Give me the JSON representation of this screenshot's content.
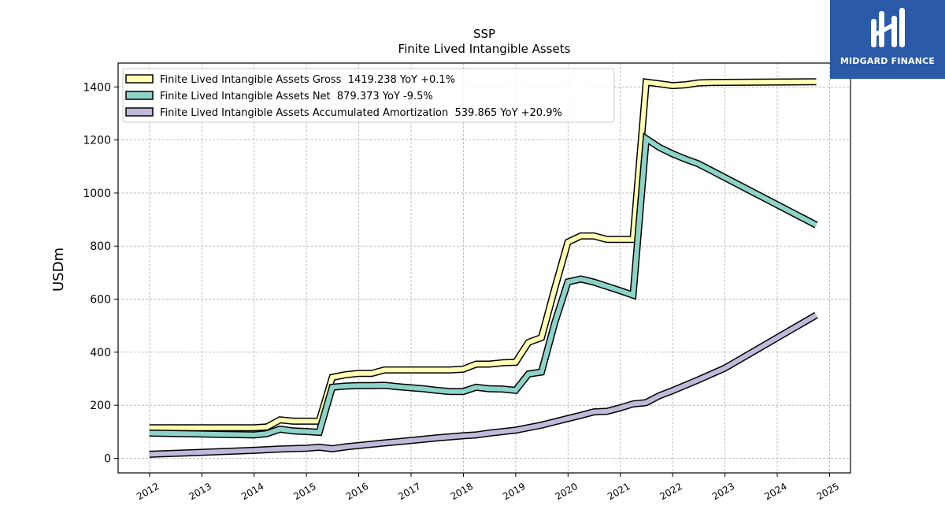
{
  "brand": {
    "name": "MIDGARD FINANCE",
    "logo_color": "#2a5aa8"
  },
  "chart_data": {
    "type": "line",
    "title": "SSP",
    "subtitle": "Finite Lived Intangible Assets",
    "ylabel": "USDm",
    "xlabel": "",
    "ylim": [
      -55,
      1490
    ],
    "xlim": [
      2011.4,
      2025.4
    ],
    "xticks": [
      "2012",
      "2013",
      "2014",
      "2015",
      "2016",
      "2017",
      "2018",
      "2019",
      "2020",
      "2021",
      "2022",
      "2023",
      "2024",
      "2025"
    ],
    "yticks": [
      "0",
      "200",
      "400",
      "600",
      "800",
      "1000",
      "1200",
      "1400"
    ],
    "grid": true,
    "legend_position": "top-left",
    "series": [
      {
        "name": "Finite Lived Intangible Assets Gross  1419.238 YoY +0.1%",
        "color": "#ffffb3",
        "points": [
          [
            "2011-12-31",
            115
          ],
          [
            "2013-12-31",
            115
          ],
          [
            "2014-03-31",
            118
          ],
          [
            "2014-06-30",
            145
          ],
          [
            "2014-09-30",
            140
          ],
          [
            "2014-12-31",
            140
          ],
          [
            "2015-03-31",
            140
          ],
          [
            "2015-06-30",
            305
          ],
          [
            "2015-09-30",
            315
          ],
          [
            "2015-12-31",
            320
          ],
          [
            "2016-03-31",
            320
          ],
          [
            "2016-06-30",
            333
          ],
          [
            "2016-09-30",
            333
          ],
          [
            "2016-12-31",
            333
          ],
          [
            "2017-03-31",
            333
          ],
          [
            "2017-06-30",
            333
          ],
          [
            "2017-09-30",
            333
          ],
          [
            "2017-12-31",
            336
          ],
          [
            "2018-03-31",
            355
          ],
          [
            "2018-06-30",
            355
          ],
          [
            "2018-09-30",
            360
          ],
          [
            "2018-12-31",
            362
          ],
          [
            "2019-03-31",
            437
          ],
          [
            "2019-06-30",
            455
          ],
          [
            "2019-09-30",
            640
          ],
          [
            "2019-12-31",
            815
          ],
          [
            "2020-03-31",
            838
          ],
          [
            "2020-06-30",
            838
          ],
          [
            "2020-09-30",
            825
          ],
          [
            "2020-12-31",
            825
          ],
          [
            "2021-03-31",
            825
          ],
          [
            "2021-06-30",
            1418
          ],
          [
            "2021-09-30",
            1412
          ],
          [
            "2021-12-31",
            1405
          ],
          [
            "2022-03-31",
            1408
          ],
          [
            "2022-06-30",
            1415
          ],
          [
            "2022-09-30",
            1417
          ],
          [
            "2024-09-30",
            1419.238
          ]
        ]
      },
      {
        "name": "Finite Lived Intangible Assets Net  879.373 YoY -9.5%",
        "color": "#8dd3c7",
        "points": [
          [
            "2011-12-31",
            95
          ],
          [
            "2013-12-31",
            88
          ],
          [
            "2014-03-31",
            93
          ],
          [
            "2014-06-30",
            110
          ],
          [
            "2014-09-30",
            103
          ],
          [
            "2014-12-31",
            101
          ],
          [
            "2015-03-31",
            98
          ],
          [
            "2015-06-30",
            268
          ],
          [
            "2015-09-30",
            272
          ],
          [
            "2015-12-31",
            274
          ],
          [
            "2016-03-31",
            274
          ],
          [
            "2016-06-30",
            275
          ],
          [
            "2016-09-30",
            270
          ],
          [
            "2016-12-31",
            266
          ],
          [
            "2017-03-31",
            262
          ],
          [
            "2017-06-30",
            256
          ],
          [
            "2017-09-30",
            252
          ],
          [
            "2017-12-31",
            252
          ],
          [
            "2018-03-31",
            268
          ],
          [
            "2018-06-30",
            262
          ],
          [
            "2018-09-30",
            261
          ],
          [
            "2018-12-31",
            256
          ],
          [
            "2019-03-31",
            318
          ],
          [
            "2019-06-30",
            325
          ],
          [
            "2019-09-30",
            510
          ],
          [
            "2019-12-31",
            665
          ],
          [
            "2020-03-31",
            676
          ],
          [
            "2020-06-30",
            664
          ],
          [
            "2020-09-30",
            648
          ],
          [
            "2020-12-31",
            632
          ],
          [
            "2021-03-31",
            615
          ],
          [
            "2021-06-30",
            1205
          ],
          [
            "2021-09-30",
            1172
          ],
          [
            "2021-12-31",
            1148
          ],
          [
            "2022-03-31",
            1128
          ],
          [
            "2022-06-30",
            1110
          ],
          [
            "2024-09-30",
            879.373
          ]
        ]
      },
      {
        "name": "Finite Lived Intangible Assets Accumulated Amortization  539.865 YoY +20.9%",
        "color": "#bebada",
        "points": [
          [
            "2011-12-31",
            15
          ],
          [
            "2013-12-31",
            30
          ],
          [
            "2014-06-30",
            35
          ],
          [
            "2014-12-31",
            38
          ],
          [
            "2015-03-31",
            42
          ],
          [
            "2015-06-30",
            36
          ],
          [
            "2015-09-30",
            43
          ],
          [
            "2015-12-31",
            48
          ],
          [
            "2016-06-30",
            58
          ],
          [
            "2016-12-31",
            67
          ],
          [
            "2017-06-30",
            77
          ],
          [
            "2017-12-31",
            85
          ],
          [
            "2018-03-31",
            88
          ],
          [
            "2018-06-30",
            95
          ],
          [
            "2018-12-31",
            106
          ],
          [
            "2019-06-30",
            125
          ],
          [
            "2019-12-31",
            150
          ],
          [
            "2020-03-31",
            162
          ],
          [
            "2020-06-30",
            175
          ],
          [
            "2020-09-30",
            177
          ],
          [
            "2020-12-31",
            190
          ],
          [
            "2021-03-31",
            205
          ],
          [
            "2021-06-30",
            210
          ],
          [
            "2021-09-30",
            236
          ],
          [
            "2021-12-31",
            255
          ],
          [
            "2022-06-30",
            296
          ],
          [
            "2022-12-31",
            340
          ],
          [
            "2024-09-30",
            539.865
          ]
        ]
      }
    ]
  }
}
